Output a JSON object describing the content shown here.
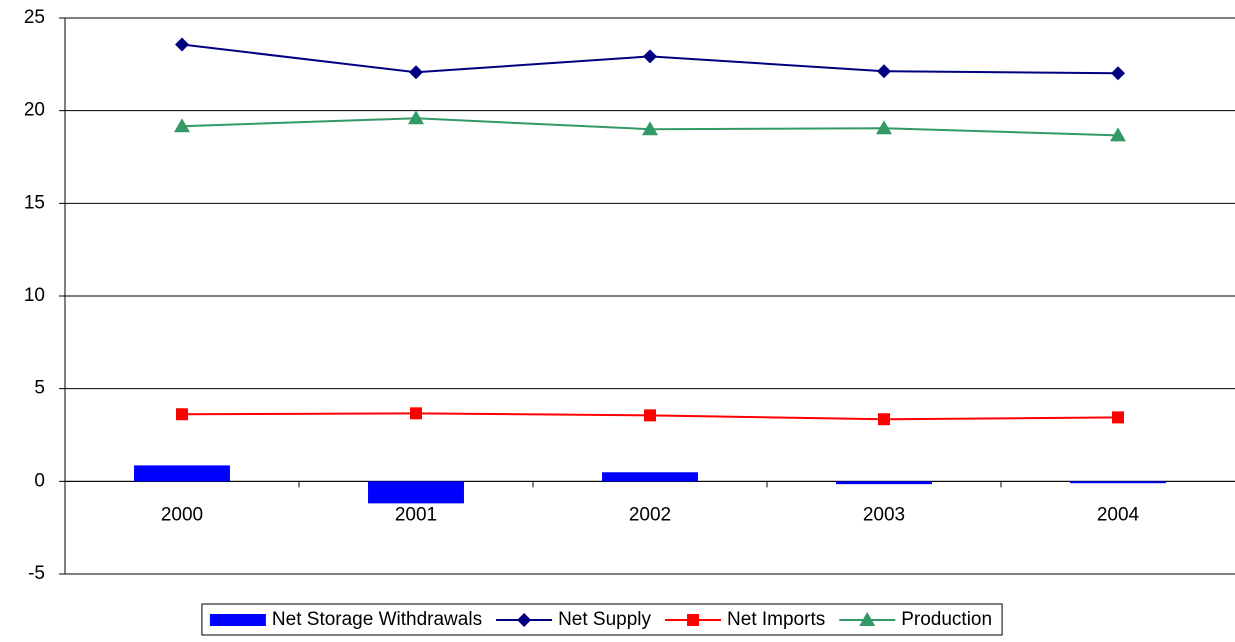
{
  "chart_data": {
    "type": "combo",
    "categories": [
      "2000",
      "2001",
      "2002",
      "2003",
      "2004"
    ],
    "series": [
      {
        "name": "Net Storage Withdrawals",
        "type": "bar",
        "color": "#0000ff",
        "values": [
          0.86,
          -1.19,
          0.49,
          -0.15,
          -0.1
        ]
      },
      {
        "name": "Net Supply",
        "type": "line",
        "marker": "diamond",
        "color": "#000080",
        "values": [
          23.57,
          22.07,
          22.93,
          22.13,
          22.02
        ]
      },
      {
        "name": "Net Imports",
        "type": "line",
        "marker": "square",
        "color": "#ff0000",
        "values": [
          3.62,
          3.67,
          3.56,
          3.35,
          3.45
        ]
      },
      {
        "name": "Production",
        "type": "line",
        "marker": "triangle",
        "color": "#339966",
        "values": [
          19.16,
          19.59,
          19.0,
          19.05,
          18.67
        ]
      }
    ],
    "ylim": [
      -5,
      25
    ],
    "yticks": [
      -5,
      0,
      5,
      10,
      15,
      20,
      25
    ],
    "grid": true,
    "legend": "bottom"
  }
}
